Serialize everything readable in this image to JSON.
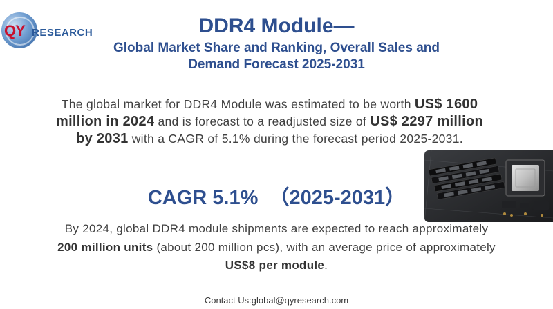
{
  "logo": {
    "mark": "QY",
    "text": "RESEARCH"
  },
  "title": "DDR4 Module—",
  "subtitle_line1": "Global Market Share and Ranking, Overall Sales and",
  "subtitle_line2": "Demand Forecast 2025-2031",
  "intro": {
    "p1": "The global market for DDR4 Module was estimated to be worth ",
    "b1": "US$ 1600 million in 2024",
    "p2": " and is forecast to a readjusted size of ",
    "b2": "US$ 2297 million by 2031",
    "p3": " with a CAGR of 5.1% during the forecast period 2025-2031."
  },
  "cagr_heading": "CAGR 5.1%  （2025-2031）",
  "detail": {
    "p1": "By 2024, global DDR4 module shipments are expected to reach approximately ",
    "b1": "200 million units",
    "p2": " (about 200 million pcs), with an average price of approximately ",
    "b2": "US$8 per module",
    "p3": "."
  },
  "contact": "Contact Us:global@qyresearch.com",
  "image": {
    "icon": "ddr4-memory-motherboard-photo"
  },
  "colors": {
    "heading": "#2e4f8f",
    "body_text": "#404040",
    "logo_red": "#c8102e",
    "logo_blue": "#2b5a9a"
  }
}
